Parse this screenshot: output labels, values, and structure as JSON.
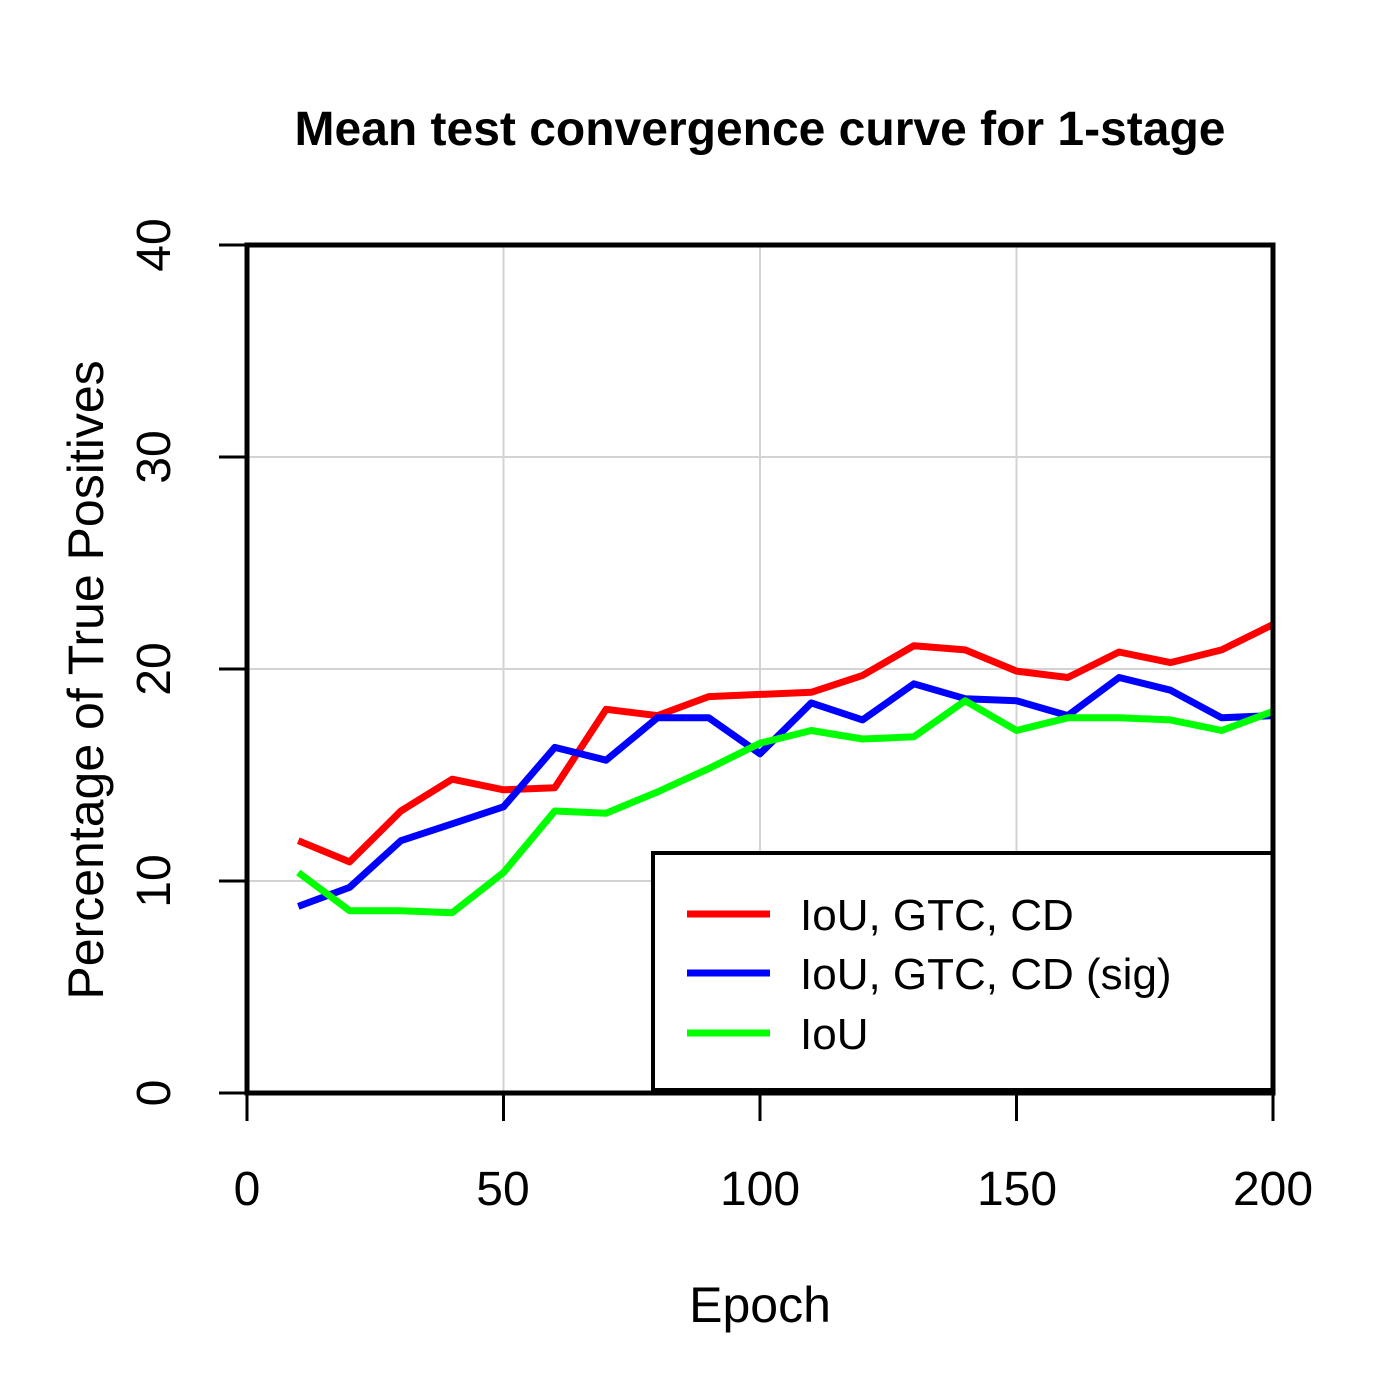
{
  "chart_data": {
    "type": "line",
    "title": "Mean test convergence curve for 1-stage",
    "xlabel": "Epoch",
    "ylabel": "Percentage of True Positives",
    "xlim": [
      0,
      200
    ],
    "ylim": [
      0,
      40
    ],
    "x_ticks": [
      0,
      50,
      100,
      150,
      200
    ],
    "y_ticks": [
      0,
      10,
      20,
      30,
      40
    ],
    "grid": true,
    "legend_position": "bottom-right",
    "x": [
      10,
      20,
      30,
      40,
      50,
      60,
      70,
      80,
      90,
      100,
      110,
      120,
      130,
      140,
      150,
      160,
      170,
      180,
      190,
      200
    ],
    "series": [
      {
        "name": "IoU, GTC, CD",
        "color": "#FF0000",
        "values": [
          11.9,
          10.9,
          13.3,
          14.8,
          14.3,
          14.4,
          18.1,
          17.8,
          18.7,
          18.8,
          18.9,
          19.7,
          21.1,
          20.9,
          19.9,
          19.6,
          20.8,
          20.3,
          20.9,
          22.1
        ]
      },
      {
        "name": "IoU, GTC, CD (sig)",
        "color": "#0000FF",
        "values": [
          8.8,
          9.7,
          11.9,
          12.7,
          13.5,
          16.3,
          15.7,
          17.7,
          17.7,
          16.0,
          18.4,
          17.6,
          19.3,
          18.6,
          18.5,
          17.8,
          19.6,
          19.0,
          17.7,
          17.8
        ]
      },
      {
        "name": "IoU",
        "color": "#00FF00",
        "values": [
          10.4,
          8.6,
          8.6,
          8.5,
          10.4,
          13.3,
          13.2,
          14.2,
          15.3,
          16.5,
          17.1,
          16.7,
          16.8,
          18.5,
          17.1,
          17.7,
          17.7,
          17.6,
          17.1,
          18.0
        ]
      }
    ]
  },
  "colors": {
    "grid": "#D3D3D3",
    "axis": "#000000",
    "background": "#FFFFFF"
  }
}
